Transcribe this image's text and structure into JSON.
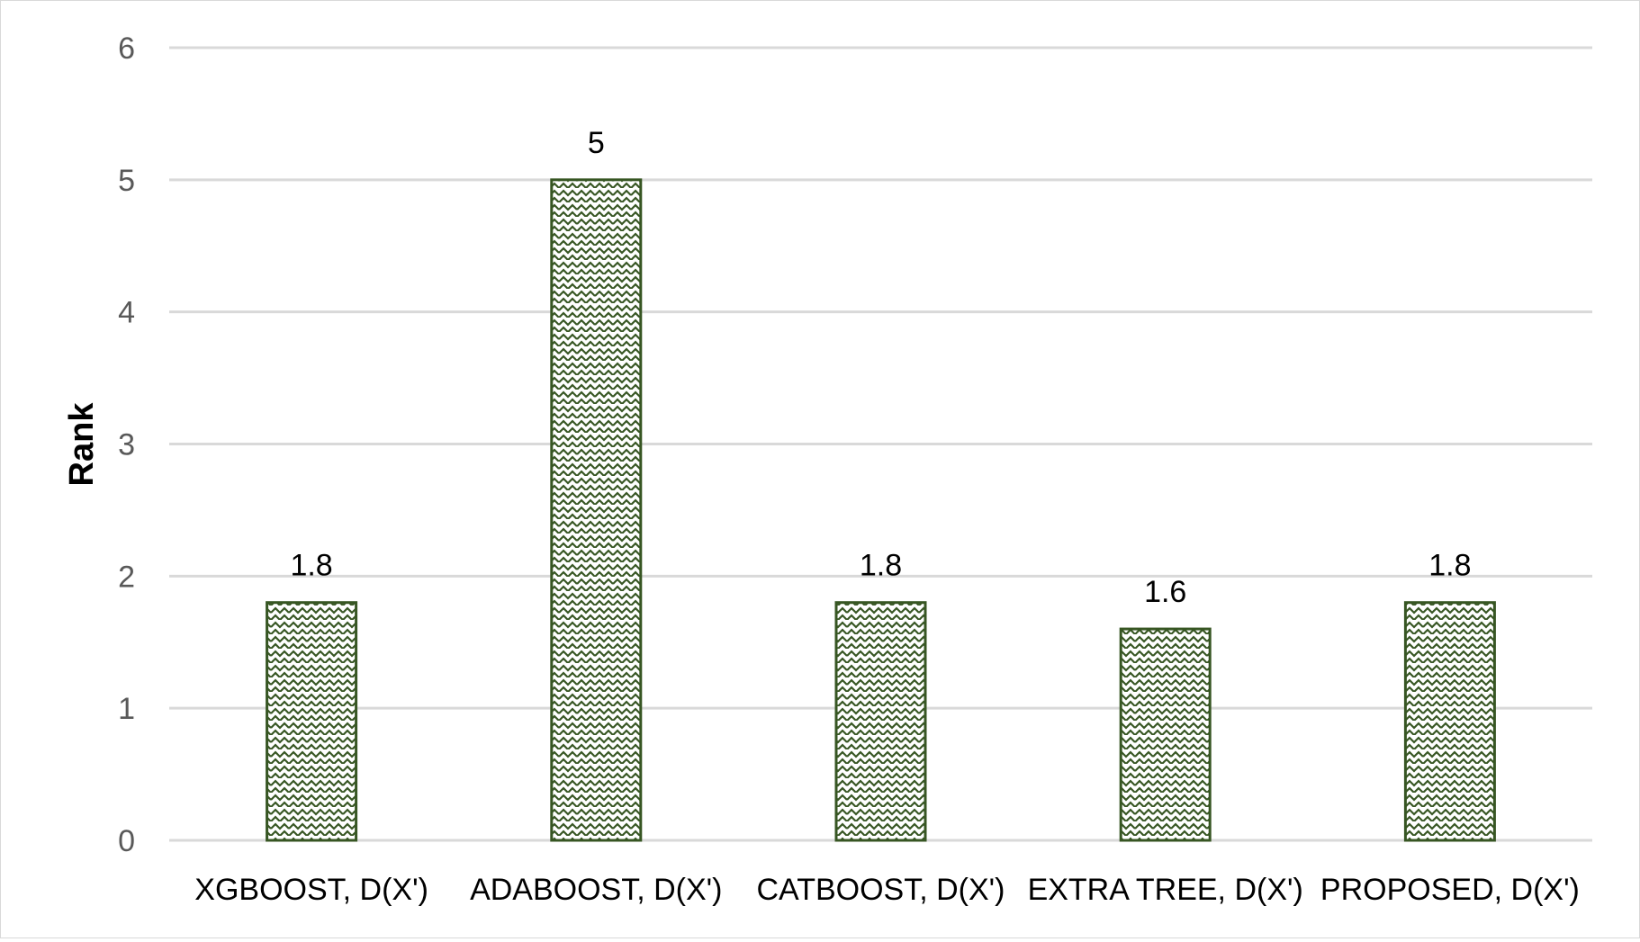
{
  "chart_data": {
    "type": "bar",
    "title": "",
    "xlabel": "",
    "ylabel": "Rank",
    "categories": [
      "XGBOOST, D(X')",
      "ADABOOST, D(X')",
      "CATBOOST, D(X')",
      "EXTRA TREE, D(X')",
      "PROPOSED, D(X')"
    ],
    "values": [
      1.8,
      5,
      1.8,
      1.6,
      1.8
    ],
    "data_labels": [
      "1.8",
      "5",
      "1.8",
      "1.6",
      "1.8"
    ],
    "ylim": [
      0,
      6
    ],
    "yticks": [
      "0",
      "1",
      "2",
      "3",
      "4",
      "5",
      "6"
    ],
    "grid": true,
    "legend": "none",
    "bar_fill": "zigzag pattern",
    "colors": {
      "bar_stroke": "#375623",
      "bar_pattern": "#375623",
      "gridline": "#d9d9d9",
      "tick_text": "#595959"
    }
  }
}
